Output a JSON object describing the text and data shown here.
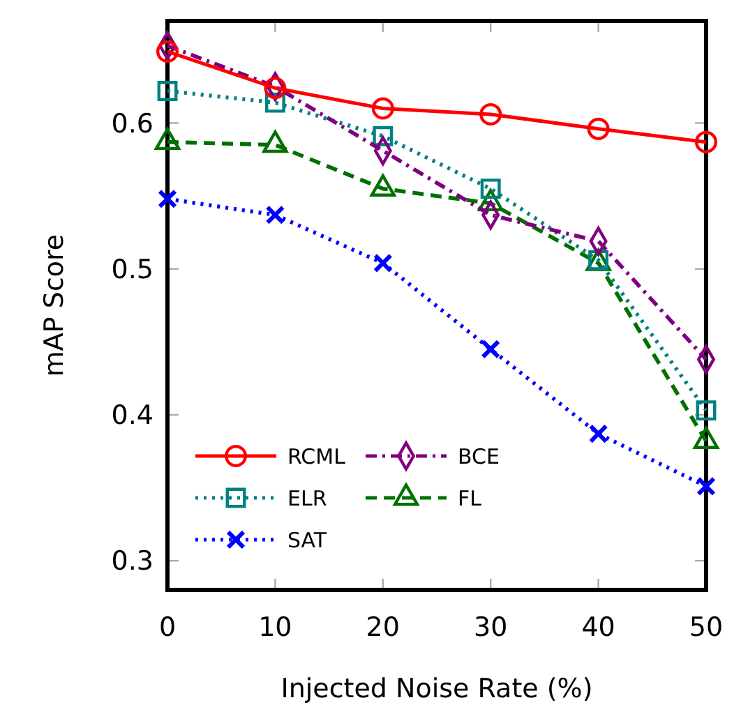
{
  "chart_data": {
    "type": "line",
    "xlabel": "Injected Noise Rate (%)",
    "ylabel": "mAP Score",
    "x": [
      0,
      10,
      20,
      30,
      40,
      50
    ],
    "xlim": [
      0,
      50
    ],
    "xticks": [
      0,
      10,
      20,
      30,
      40,
      50
    ],
    "ylim": [
      0.28,
      0.67
    ],
    "yticks": [
      {
        "value": 0.3,
        "label": "0.3"
      },
      {
        "value": 0.4,
        "label": "0.4"
      },
      {
        "value": 0.5,
        "label": "0.5"
      },
      {
        "value": 0.6,
        "label": "0.6"
      }
    ],
    "grid": false,
    "legend": "bottom left",
    "series": [
      {
        "name": "RCML",
        "color": "#ff0000",
        "marker": "circle",
        "line_style": "solid",
        "values": [
          0.649,
          0.624,
          0.61,
          0.606,
          0.596,
          0.587
        ]
      },
      {
        "name": "BCE",
        "color": "#800080",
        "marker": "diamond",
        "line_style": "dashdot",
        "values": [
          0.653,
          0.625,
          0.581,
          0.537,
          0.519,
          0.438
        ]
      },
      {
        "name": "ELR",
        "color": "#008080",
        "marker": "square",
        "line_style": "dotted",
        "values": [
          0.622,
          0.614,
          0.591,
          0.555,
          0.506,
          0.403
        ]
      },
      {
        "name": "FL",
        "color": "#007000",
        "marker": "triangle",
        "line_style": "dashed",
        "values": [
          0.587,
          0.585,
          0.555,
          0.545,
          0.504,
          0.382
        ]
      },
      {
        "name": "SAT",
        "color": "#0000ff",
        "marker": "cross",
        "line_style": "dotted",
        "values": [
          0.548,
          0.537,
          0.504,
          0.445,
          0.387,
          0.351
        ]
      }
    ]
  }
}
